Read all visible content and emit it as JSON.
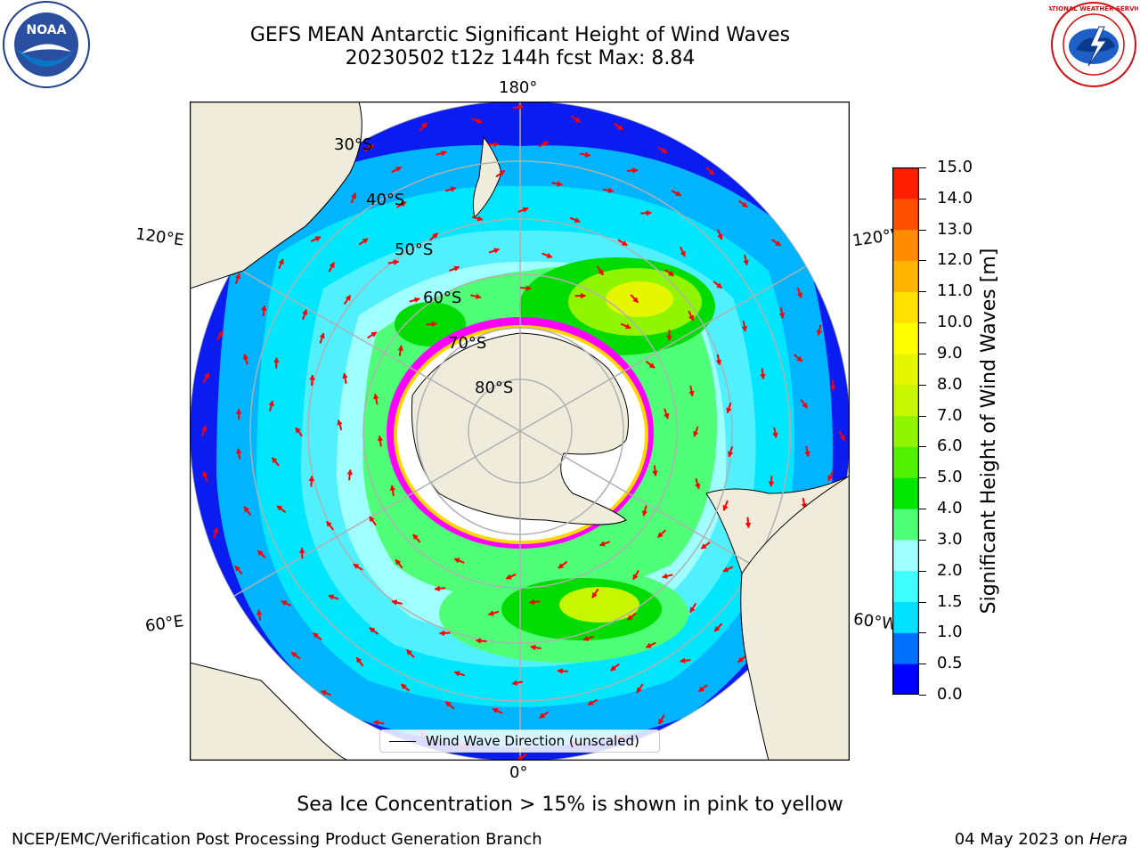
{
  "title": {
    "line1": "GEFS MEAN Antarctic Significant Height of Wind Waves",
    "line2": "20230502 t12z 144h fcst   Max: 8.84"
  },
  "logos": {
    "noaa_text": "NOAA",
    "nws_text": "NATIONAL WEATHER SERVICE"
  },
  "map": {
    "projection": "south-polar-stereographic",
    "longitude_labels": {
      "top": "180°",
      "bottom": "0°",
      "upper_left": "120°E",
      "lower_left": "60°E",
      "upper_right": "120°W",
      "lower_right": "60°W"
    },
    "latitude_labels": [
      "30°S",
      "40°S",
      "50°S",
      "60°S",
      "70°S",
      "80°S"
    ],
    "legend": "Wind Wave Direction (unscaled)",
    "colors": {
      "land": "#efecdc",
      "arrows": "#ff0000",
      "gridlines": "#b0b0b0",
      "sea_ice_low": "#ff00ff",
      "sea_ice_high": "#ffd700"
    }
  },
  "colorbar": {
    "label": "Significant Height of Wind Waves [m]",
    "ticks": [
      "0.0",
      "0.5",
      "1.0",
      "1.5",
      "2.0",
      "3.0",
      "4.0",
      "5.0",
      "6.0",
      "7.0",
      "8.0",
      "9.0",
      "10.0",
      "11.0",
      "12.0",
      "13.0",
      "14.0",
      "15.0"
    ],
    "colors": [
      "#0000ff",
      "#0070ff",
      "#00e0ff",
      "#40ffff",
      "#a0ffff",
      "#50ff78",
      "#00e600",
      "#50f000",
      "#90f500",
      "#c8f500",
      "#e6f500",
      "#ffff00",
      "#ffe000",
      "#ffb400",
      "#ff8c00",
      "#ff5000",
      "#ff1e00"
    ]
  },
  "caption": "Sea Ice Concentration > 15% is shown in pink to yellow",
  "footer": {
    "left": "NCEP/EMC/Verification Post Processing Product Generation Branch",
    "right_date": "04 May 2023 on ",
    "right_host": "Hera"
  }
}
